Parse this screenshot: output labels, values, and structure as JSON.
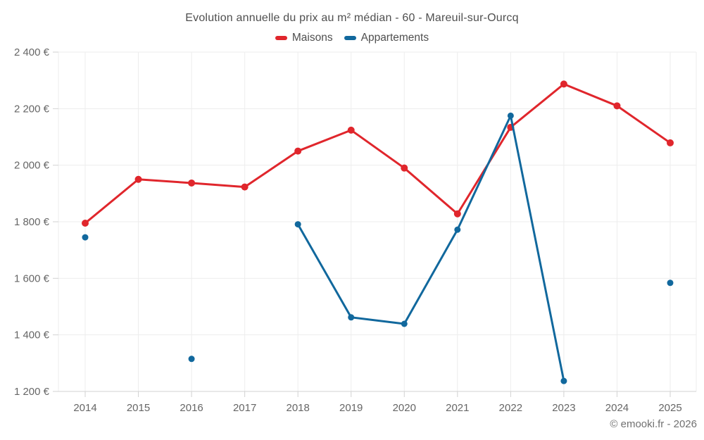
{
  "chart": {
    "title": "Evolution annuelle du prix au m² médian - 60 - Mareuil-sur-Ourcq"
  },
  "footer": {
    "copyright": "© emooki.fr - 2026"
  },
  "chart_data": {
    "type": "line",
    "title": "Evolution annuelle du prix au m² médian - 60 - Mareuil-sur-Ourcq",
    "categories": [
      "2014",
      "2015",
      "2016",
      "2017",
      "2018",
      "2019",
      "2020",
      "2021",
      "2022",
      "2023",
      "2024",
      "2025"
    ],
    "series": [
      {
        "name": "Maisons",
        "color": "#e0262c",
        "marker_radius": 5,
        "values": [
          1795,
          1950,
          1937,
          1923,
          2050,
          2124,
          1990,
          1828,
          2134,
          2287,
          2210,
          2079
        ]
      },
      {
        "name": "Appartements",
        "color": "#11689d",
        "marker_radius": 4.5,
        "values": [
          1745,
          null,
          1315,
          null,
          1791,
          1462,
          1439,
          1772,
          2175,
          1237,
          null,
          1584
        ]
      }
    ],
    "ylim": [
      1200,
      2400
    ],
    "ytick_step": 200,
    "ytick_labels": [
      "1 200 €",
      "1 400 €",
      "1 600 €",
      "1 800 €",
      "2 000 €",
      "2 200 €",
      "2 400 €"
    ],
    "xlabel": "",
    "ylabel": "",
    "grid": true,
    "legend_position": "top",
    "grid_color": "#ededed",
    "axis_color": "#d2d2d2"
  }
}
